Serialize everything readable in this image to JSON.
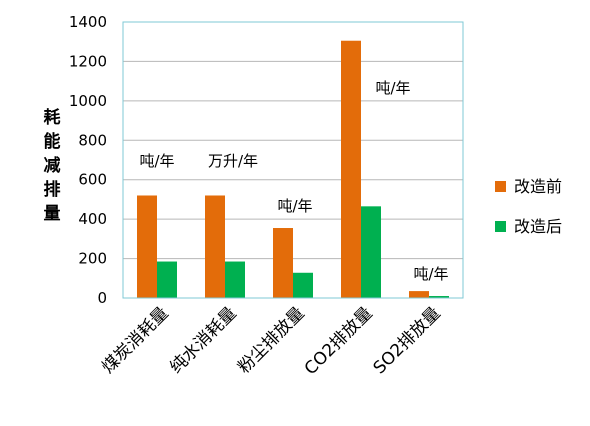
{
  "chart_data": {
    "type": "bar",
    "categories": [
      "煤炭消耗量",
      "纯水消耗量",
      "粉尘排放量",
      "CO2排放量",
      "SO2排放量"
    ],
    "series": [
      {
        "name": "改造前",
        "color": "#e36c0a",
        "values": [
          520,
          520,
          355,
          1305,
          35
        ]
      },
      {
        "name": "改造后",
        "color": "#00b050",
        "values": [
          185,
          185,
          128,
          465,
          10
        ]
      }
    ],
    "units": [
      "吨/年",
      "万升/年",
      "吨/年",
      "吨/年",
      "吨/年"
    ],
    "ylabel": "耗能减排量",
    "ylim": [
      0,
      1400
    ],
    "yticks": [
      0,
      200,
      400,
      600,
      800,
      1000,
      1200,
      1400
    ],
    "grid": true,
    "legend": "right"
  }
}
